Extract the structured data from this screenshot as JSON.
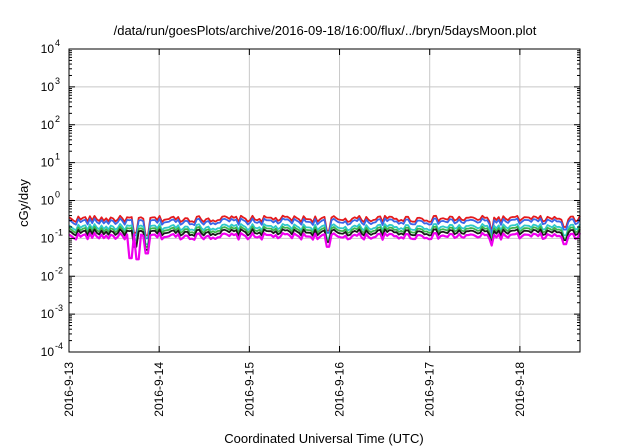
{
  "chart_data": {
    "type": "line",
    "title": "/data/run/goesPlots/archive/2016-09-18/16:00/flux/../bryn/5daysMoon.plot",
    "xlabel": "Coordinated Universal Time (UTC)",
    "ylabel": "cGy/day",
    "yscale": "log",
    "ylim": [
      0.0001,
      10000
    ],
    "xlim": [
      "2016-09-13",
      "2016-09-18 16:00"
    ],
    "grid": true,
    "legend": "none",
    "y_ticks": [
      {
        "base": "10",
        "exp": "-4",
        "value": 0.0001
      },
      {
        "base": "10",
        "exp": "-3",
        "value": 0.001
      },
      {
        "base": "10",
        "exp": "-2",
        "value": 0.01
      },
      {
        "base": "10",
        "exp": "-1",
        "value": 0.1
      },
      {
        "base": "10",
        "exp": "0",
        "value": 1
      },
      {
        "base": "10",
        "exp": "1",
        "value": 10
      },
      {
        "base": "10",
        "exp": "2",
        "value": 100
      },
      {
        "base": "10",
        "exp": "3",
        "value": 1000
      },
      {
        "base": "10",
        "exp": "4",
        "value": 10000
      }
    ],
    "x_ticks": [
      "2016-9-13",
      "2016-9-14",
      "2016-9-15",
      "2016-9-16",
      "2016-9-17",
      "2016-9-18"
    ],
    "series": [
      {
        "color": "#e41a1c",
        "baseline": 0.33,
        "dips": [
          {
            "t": "2016-09-13 17:30",
            "v": 0.14
          },
          {
            "t": "2016-09-13 20:30",
            "v": 0.12
          },
          {
            "t": "2016-09-15 21:00",
            "v": 0.16
          },
          {
            "t": "2016-09-17 16:30",
            "v": 0.14
          },
          {
            "t": "2016-09-18 12:00",
            "v": 0.2
          }
        ]
      },
      {
        "color": "#3a66e8",
        "baseline": 0.28,
        "dips": [
          {
            "t": "2016-09-13 17:30",
            "v": 0.12
          },
          {
            "t": "2016-09-13 20:30",
            "v": 0.1
          },
          {
            "t": "2016-09-15 21:00",
            "v": 0.14
          },
          {
            "t": "2016-09-17 16:30",
            "v": 0.12
          },
          {
            "t": "2016-09-18 12:00",
            "v": 0.17
          }
        ]
      },
      {
        "color": "#2ec9c9",
        "baseline": 0.2,
        "dips": [
          {
            "t": "2016-09-13 17:30",
            "v": 0.09
          },
          {
            "t": "2016-09-13 20:30",
            "v": 0.07
          },
          {
            "t": "2016-09-15 21:00",
            "v": 0.1
          },
          {
            "t": "2016-09-17 16:30",
            "v": 0.09
          },
          {
            "t": "2016-09-18 12:00",
            "v": 0.12
          }
        ]
      },
      {
        "color": "#3cb44b",
        "baseline": 0.17,
        "dips": [
          {
            "t": "2016-09-13 17:30",
            "v": 0.07
          },
          {
            "t": "2016-09-13 20:30",
            "v": 0.06
          },
          {
            "t": "2016-09-15 21:00",
            "v": 0.09
          },
          {
            "t": "2016-09-17 16:30",
            "v": 0.08
          },
          {
            "t": "2016-09-18 12:00",
            "v": 0.1
          }
        ]
      },
      {
        "color": "#1a1a1a",
        "baseline": 0.145,
        "dips": [
          {
            "t": "2016-09-13 17:30",
            "v": 0.06
          },
          {
            "t": "2016-09-13 20:30",
            "v": 0.05
          },
          {
            "t": "2016-09-15 21:00",
            "v": 0.08
          },
          {
            "t": "2016-09-17 16:30",
            "v": 0.07
          },
          {
            "t": "2016-09-18 12:00",
            "v": 0.09
          }
        ]
      },
      {
        "color": "#e0e",
        "baseline": 0.115,
        "dips": [
          {
            "t": "2016-09-13 16:30",
            "v": 0.03
          },
          {
            "t": "2016-09-13 18:30",
            "v": 0.028
          },
          {
            "t": "2016-09-13 20:30",
            "v": 0.04
          },
          {
            "t": "2016-09-15 21:00",
            "v": 0.06
          },
          {
            "t": "2016-09-17 16:30",
            "v": 0.065
          },
          {
            "t": "2016-09-18 12:00",
            "v": 0.07
          }
        ]
      }
    ]
  }
}
